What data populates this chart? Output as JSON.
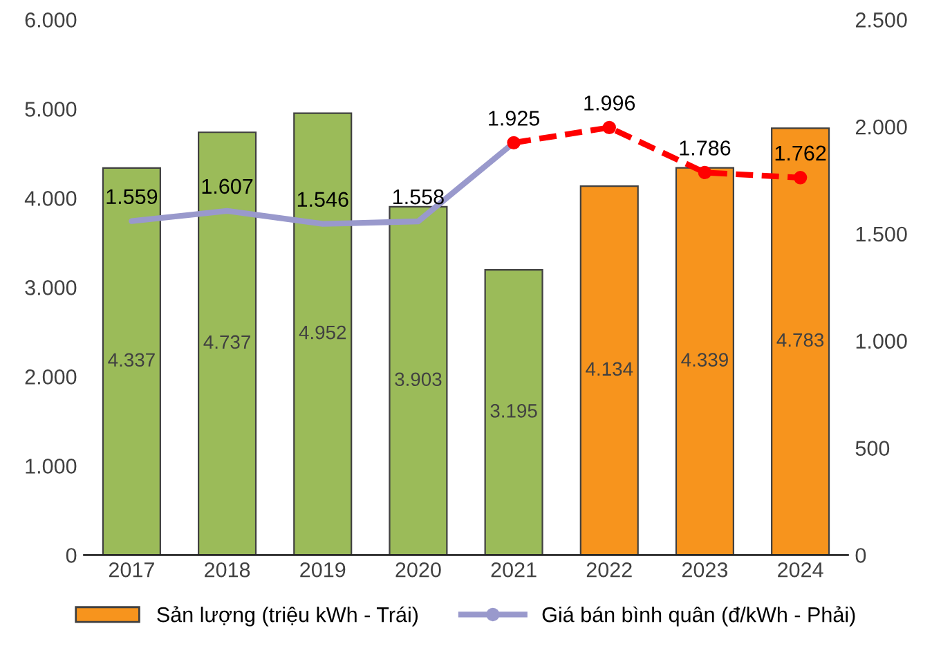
{
  "chart_data": {
    "type": "bar",
    "categories": [
      "2017",
      "2018",
      "2019",
      "2020",
      "2021",
      "2022",
      "2023",
      "2024"
    ],
    "ylim": [
      0,
      6000
    ],
    "yticks": [
      0,
      {
        "value": 1000,
        "label": "1.000"
      },
      {
        "value": 2000,
        "label": "2.000"
      },
      {
        "value": 3000,
        "label": "3.000"
      },
      {
        "value": 4000,
        "label": "4.000"
      },
      {
        "value": 5000,
        "label": "5.000"
      },
      {
        "value": 6000,
        "label": "6.000"
      }
    ],
    "y2lim": [
      0,
      2500
    ],
    "y2ticks": [
      0,
      500,
      {
        "value": 1000,
        "label": "1.000"
      },
      {
        "value": 1500,
        "label": "1.500"
      },
      {
        "value": 2000,
        "label": "2.000"
      },
      {
        "value": 2500,
        "label": "2.500"
      }
    ],
    "grid": false,
    "legend": "bottom",
    "series": [
      {
        "name": "Sản lượng (triệu kWh - Trái)",
        "color": "#f7941d",
        "colors": [
          "#9bbb59",
          "#9bbb59",
          "#9bbb59",
          "#9bbb59",
          "#9bbb59",
          "#f7941d",
          "#f7941d",
          "#f7941d"
        ],
        "values": [
          4337,
          4737,
          4952,
          3903,
          3195,
          4134,
          4339,
          4783
        ],
        "value_labels": [
          "4.337",
          "4.737",
          "4.952",
          "3.903",
          "3.195",
          "4.134",
          "4.339",
          "4.783"
        ]
      },
      {
        "type": "line",
        "axis": "y2",
        "name": "Giá bán bình quân (đ/kWh - Phải)",
        "color": "#9999cc",
        "line_style": "solid",
        "marker": "none",
        "values": [
          1559,
          1607,
          1546,
          1558,
          1925,
          null,
          null,
          null
        ],
        "value_labels": [
          "1.559",
          "1.607",
          "1.546",
          "1.558",
          "1.925",
          null,
          null,
          null
        ]
      },
      {
        "type": "line",
        "axis": "y2",
        "color": "#ff0000",
        "line_style": "dashed",
        "marker": "circle",
        "values": [
          null,
          null,
          null,
          null,
          1925,
          1996,
          1786,
          1762
        ],
        "value_labels": [
          null,
          null,
          null,
          null,
          null,
          "1.996",
          "1.786",
          "1.762"
        ]
      }
    ]
  }
}
